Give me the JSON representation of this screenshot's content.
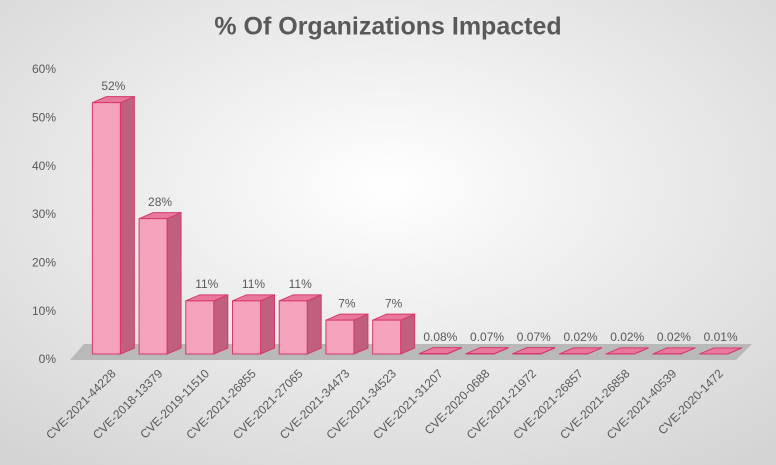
{
  "chart_data": {
    "type": "bar3d",
    "title": "% Of Organizations Impacted",
    "categories": [
      "CVE-2021-44228",
      "CVE-2018-13379",
      "CVE-2019-11510",
      "CVE-2021-26855",
      "CVE-2021-27065",
      "CVE-2021-34473",
      "CVE-2021-34523",
      "CVE-2021-31207",
      "CVE-2020-0688",
      "CVE-2021-21972",
      "CVE-2021-26857",
      "CVE-2021-26858",
      "CVE-2021-40539",
      "CVE-2020-1472"
    ],
    "values": [
      52,
      28,
      11,
      11,
      11,
      7,
      7,
      0.08,
      0.07,
      0.07,
      0.02,
      0.02,
      0.02,
      0.01
    ],
    "value_labels": [
      "52%",
      "28%",
      "11%",
      "11%",
      "11%",
      "7%",
      "7%",
      "0.08%",
      "0.07%",
      "0.07%",
      "0.02%",
      "0.02%",
      "0.02%",
      "0.01%"
    ],
    "color": "#f5a3bd",
    "ylim": [
      0,
      60
    ],
    "yticks": [
      {
        "value": 0,
        "label": "0%"
      },
      {
        "value": 10,
        "label": "10%"
      },
      {
        "value": 20,
        "label": "20%"
      },
      {
        "value": 30,
        "label": "30%"
      },
      {
        "value": 40,
        "label": "40%"
      },
      {
        "value": 50,
        "label": "50%"
      },
      {
        "value": 60,
        "label": "60%"
      }
    ]
  }
}
